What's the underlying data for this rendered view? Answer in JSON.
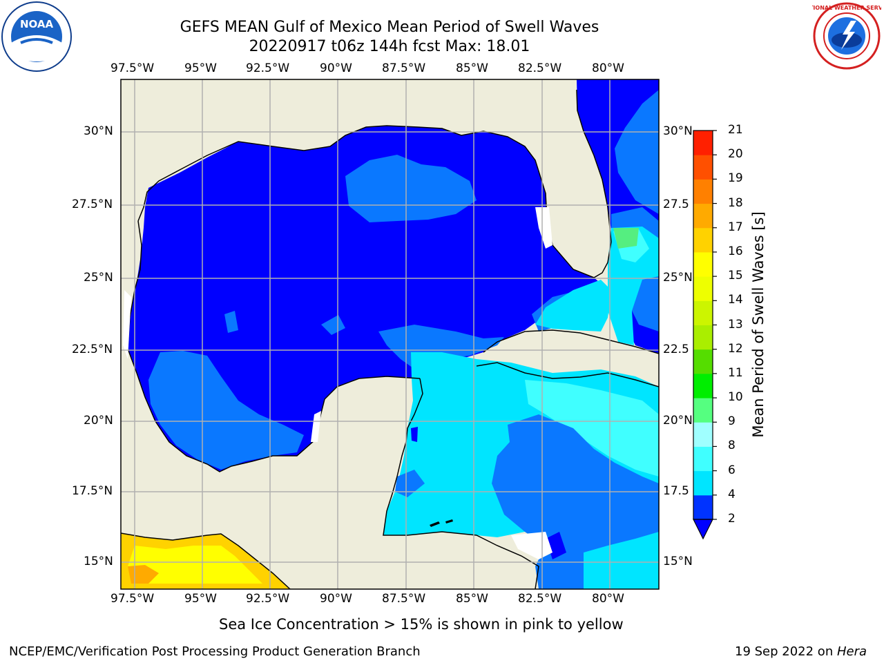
{
  "title": {
    "line1": "GEFS MEAN Gulf of Mexico Mean Period of Swell Waves",
    "line2": "20220917 t06z 144h fcst   Max: 18.01"
  },
  "axes": {
    "longitude_ticks": [
      "97.5°W",
      "95°W",
      "92.5°W",
      "90°W",
      "87.5°W",
      "85°W",
      "82.5°W",
      "80°W"
    ],
    "latitude_ticks_left": [
      "30°N",
      "27.5°N",
      "25°N",
      "22.5°N",
      "20°N",
      "17.5°N",
      "15°N"
    ],
    "latitude_ticks_right": [
      "30°N",
      "27.5",
      "25°N",
      "22.5",
      "20°N",
      "17.5",
      "15°N"
    ],
    "lon_range": [
      -98,
      -78.25
    ],
    "lat_range": [
      14,
      31.8
    ]
  },
  "colorbar": {
    "title": "Mean Period of Swell Waves [s]",
    "ticks": [
      "2",
      "4",
      "6",
      "8",
      "9",
      "10",
      "11",
      "12",
      "13",
      "14",
      "15",
      "16",
      "17",
      "18",
      "19",
      "20",
      "21"
    ],
    "colors": [
      "#0033ff",
      "#00e5ff",
      "#40ffff",
      "#a0ffff",
      "#55ff80",
      "#00ee00",
      "#55dd00",
      "#aaee00",
      "#ccf500",
      "#eeff00",
      "#ffff00",
      "#ffd200",
      "#ffaa00",
      "#ff8000",
      "#ff5000",
      "#ff2000"
    ],
    "extend_color": "#0000ff"
  },
  "legend_note": "Sea Ice Concentration > 15% is shown in pink to yellow",
  "footer": {
    "left": "NCEP/EMC/Verification Post Processing Product Generation Branch",
    "right_date": "19 Sep 2022 on ",
    "right_host": "Hera"
  },
  "logos": {
    "left": "noaa-logo",
    "left_text": "NOAA",
    "right": "nws-logo",
    "right_text": "NATIONAL WEATHER SERVICE"
  },
  "colors": {
    "land": "#eeeddb",
    "ocean_deep": "#0000ff",
    "period_2_4": "#0a78ff",
    "period_4_6": "#00e5ff",
    "period_6_8": "#40ffff",
    "period_9_10": "#55ee80",
    "pacific_warm": "#ffd200"
  }
}
